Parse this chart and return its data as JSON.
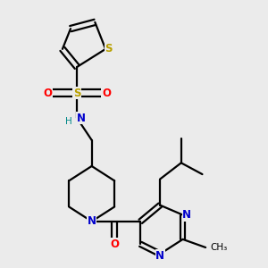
{
  "background_color": "#ebebeb",
  "bond_lw": 1.6,
  "atom_colors": {
    "S": "#b8a000",
    "O": "#ff0000",
    "N": "#0000cc",
    "C": "#000000",
    "H": "#008888"
  }
}
